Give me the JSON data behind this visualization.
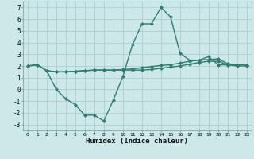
{
  "xlabel": "Humidex (Indice chaleur)",
  "bg_color": "#cde8e8",
  "grid_color": "#aacfcf",
  "line_color": "#2e7d6e",
  "x": [
    0,
    1,
    2,
    3,
    4,
    5,
    6,
    7,
    8,
    9,
    10,
    11,
    12,
    13,
    14,
    15,
    16,
    17,
    18,
    19,
    20,
    21,
    22,
    23
  ],
  "line1": [
    2.0,
    2.1,
    1.6,
    0.0,
    -0.8,
    -1.3,
    -2.2,
    -2.2,
    -2.7,
    -0.9,
    1.1,
    3.8,
    5.6,
    5.6,
    7.0,
    6.2,
    3.1,
    2.5,
    2.5,
    2.8,
    2.1,
    2.1,
    2.1,
    2.1
  ],
  "line2": [
    2.0,
    2.1,
    1.6,
    1.5,
    1.5,
    1.55,
    1.6,
    1.65,
    1.65,
    1.65,
    1.7,
    1.75,
    1.85,
    1.95,
    2.05,
    2.1,
    2.25,
    2.4,
    2.5,
    2.55,
    2.6,
    2.2,
    2.1,
    2.1
  ],
  "line3": [
    2.0,
    2.1,
    1.6,
    1.5,
    1.5,
    1.55,
    1.6,
    1.65,
    1.65,
    1.65,
    1.65,
    1.65,
    1.65,
    1.7,
    1.8,
    1.9,
    2.0,
    2.15,
    2.3,
    2.4,
    2.4,
    2.1,
    2.0,
    2.0
  ],
  "ylim": [
    -3.5,
    7.5
  ],
  "yticks": [
    -3,
    -2,
    -1,
    0,
    1,
    2,
    3,
    4,
    5,
    6,
    7
  ],
  "xticks": [
    0,
    1,
    2,
    3,
    4,
    5,
    6,
    7,
    8,
    9,
    10,
    11,
    12,
    13,
    14,
    15,
    16,
    17,
    18,
    19,
    20,
    21,
    22,
    23
  ],
  "markersize": 2.5,
  "linewidth": 1.0
}
